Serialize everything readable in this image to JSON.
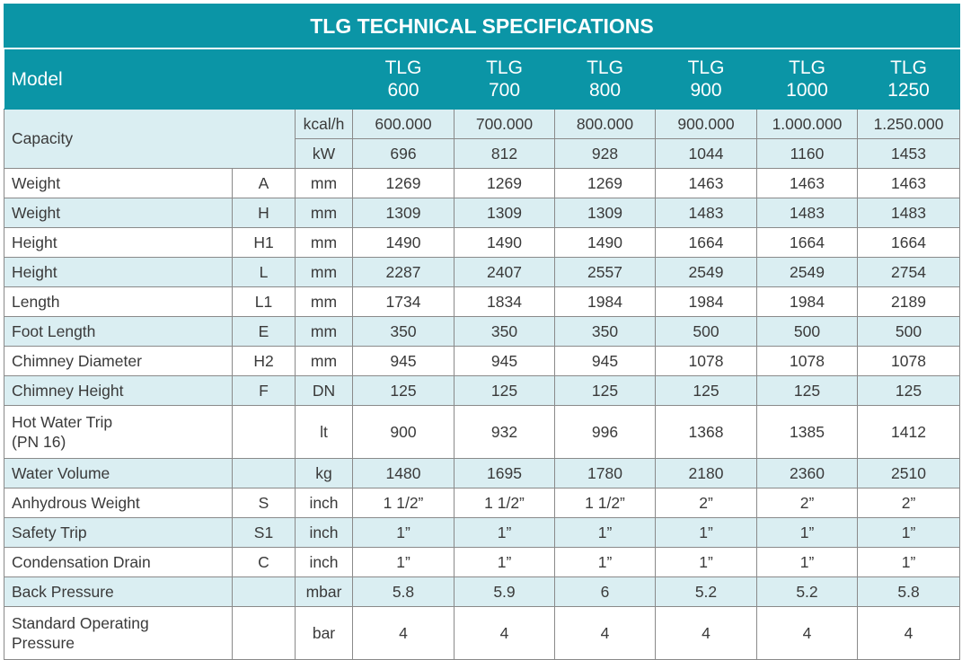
{
  "title": "TLG TECHNICAL SPECIFICATIONS",
  "header": {
    "model_label": "Model",
    "models": [
      {
        "line1": "TLG",
        "line2": "600"
      },
      {
        "line1": "TLG",
        "line2": "700"
      },
      {
        "line1": "TLG",
        "line2": "800"
      },
      {
        "line1": "TLG",
        "line2": "900"
      },
      {
        "line1": "TLG",
        "line2": "1000"
      },
      {
        "line1": "TLG",
        "line2": "1250"
      }
    ]
  },
  "capacity": {
    "label": "Capacity",
    "rows": [
      {
        "unit": "kcal/h",
        "values": [
          "600.000",
          "700.000",
          "800.000",
          "900.000",
          "1.000.000",
          "1.250.000"
        ]
      },
      {
        "unit": "kW",
        "values": [
          "696",
          "812",
          "928",
          "1044",
          "1160",
          "1453"
        ]
      }
    ]
  },
  "rows": [
    {
      "label": "Weight",
      "symbol": "A",
      "unit": "mm",
      "values": [
        "1269",
        "1269",
        "1269",
        "1463",
        "1463",
        "1463"
      ]
    },
    {
      "label": "Weight",
      "symbol": "H",
      "unit": "mm",
      "values": [
        "1309",
        "1309",
        "1309",
        "1483",
        "1483",
        "1483"
      ]
    },
    {
      "label": "Height",
      "symbol": "H1",
      "unit": "mm",
      "values": [
        "1490",
        "1490",
        "1490",
        "1664",
        "1664",
        "1664"
      ]
    },
    {
      "label": "Height",
      "symbol": "L",
      "unit": "mm",
      "values": [
        "2287",
        "2407",
        "2557",
        "2549",
        "2549",
        "2754"
      ]
    },
    {
      "label": "Length",
      "symbol": "L1",
      "unit": "mm",
      "values": [
        "1734",
        "1834",
        "1984",
        "1984",
        "1984",
        "2189"
      ]
    },
    {
      "label": "Foot Length",
      "symbol": "E",
      "unit": "mm",
      "values": [
        "350",
        "350",
        "350",
        "500",
        "500",
        "500"
      ]
    },
    {
      "label": "Chimney Diameter",
      "symbol": "H2",
      "unit": "mm",
      "values": [
        "945",
        "945",
        "945",
        "1078",
        "1078",
        "1078"
      ]
    },
    {
      "label": "Chimney Height",
      "symbol": "F",
      "unit": "DN",
      "values": [
        "125",
        "125",
        "125",
        "125",
        "125",
        "125"
      ]
    },
    {
      "label": "Hot Water Trip",
      "label2": "(PN 16)",
      "symbol": "",
      "unit": "lt",
      "values": [
        "900",
        "932",
        "996",
        "1368",
        "1385",
        "1412"
      ]
    },
    {
      "label": "Water Volume",
      "symbol": "",
      "unit": "kg",
      "values": [
        "1480",
        "1695",
        "1780",
        "2180",
        "2360",
        "2510"
      ]
    },
    {
      "label": "Anhydrous Weight",
      "symbol": "S",
      "unit": "inch",
      "values": [
        "1 1/2”",
        "1 1/2”",
        "1 1/2”",
        "2”",
        "2”",
        "2”"
      ]
    },
    {
      "label": "Safety Trip",
      "symbol": "S1",
      "unit": "inch",
      "values": [
        "1”",
        "1”",
        "1”",
        "1”",
        "1”",
        "1”"
      ]
    },
    {
      "label": "Condensation Drain",
      "symbol": "C",
      "unit": "inch",
      "values": [
        "1”",
        "1”",
        "1”",
        "1”",
        "1”",
        "1”"
      ]
    },
    {
      "label": "Back Pressure",
      "symbol": "",
      "unit": "mbar",
      "values": [
        "5.8",
        "5.9",
        "6",
        "5.2",
        "5.2",
        "5.8"
      ]
    },
    {
      "label": "Standard Operating",
      "label2": "Pressure",
      "symbol": "",
      "unit": "bar",
      "values": [
        "4",
        "4",
        "4",
        "4",
        "4",
        "4"
      ]
    }
  ],
  "colors": {
    "header_bg": "#0b95a6",
    "band_bg": "#daeef2",
    "text": "#3a3a3a"
  }
}
